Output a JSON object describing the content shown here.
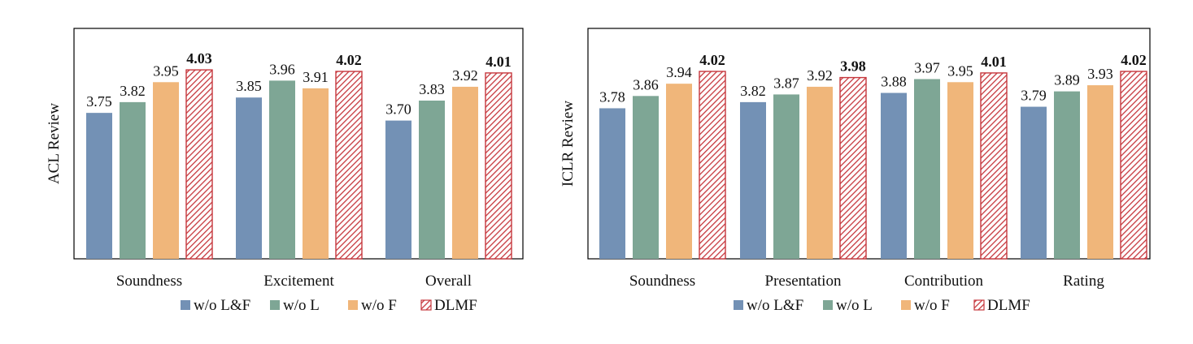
{
  "chart_data": [
    {
      "type": "bar",
      "ylabel": "ACL Review",
      "categories": [
        "Soundness",
        "Excitement",
        "Overall"
      ],
      "ylim": [
        2.8,
        4.3
      ],
      "grid": false,
      "legend_position": "bottom",
      "series": [
        {
          "name": "w/o L&F",
          "values": [
            3.75,
            3.85,
            3.7
          ],
          "color": "#7391b5",
          "labels": [
            "3.75",
            "3.85",
            "3.70"
          ]
        },
        {
          "name": "w/o L",
          "values": [
            3.82,
            3.96,
            3.83
          ],
          "color": "#7ea695",
          "labels": [
            "3.82",
            "3.96",
            "3.83"
          ]
        },
        {
          "name": "w/o F",
          "values": [
            3.95,
            3.91,
            3.92
          ],
          "color": "#f0b67a",
          "labels": [
            "3.95",
            "3.91",
            "3.92"
          ]
        },
        {
          "name": "DLMF",
          "values": [
            4.03,
            4.02,
            4.01
          ],
          "color": "#c6373d",
          "pattern": "hatched",
          "bold": true,
          "labels": [
            "4.03",
            "4.02",
            "4.01"
          ]
        }
      ]
    },
    {
      "type": "bar",
      "ylabel": "ICLR Review",
      "categories": [
        "Soundness",
        "Presentation",
        "Contribution",
        "Rating"
      ],
      "ylim": [
        2.8,
        4.3
      ],
      "grid": false,
      "legend_position": "bottom",
      "series": [
        {
          "name": "w/o L&F",
          "values": [
            3.78,
            3.82,
            3.88,
            3.79
          ],
          "color": "#7391b5",
          "labels": [
            "3.78",
            "3.82",
            "3.88",
            "3.79"
          ]
        },
        {
          "name": "w/o L",
          "values": [
            3.86,
            3.87,
            3.97,
            3.89
          ],
          "color": "#7ea695",
          "labels": [
            "3.86",
            "3.87",
            "3.97",
            "3.89"
          ]
        },
        {
          "name": "w/o F",
          "values": [
            3.94,
            3.92,
            3.95,
            3.93
          ],
          "color": "#f0b67a",
          "labels": [
            "3.94",
            "3.92",
            "3.95",
            "3.93"
          ]
        },
        {
          "name": "DLMF",
          "values": [
            4.02,
            3.98,
            4.01,
            4.02
          ],
          "color": "#c6373d",
          "pattern": "hatched",
          "bold": true,
          "labels": [
            "4.02",
            "3.98",
            "4.01",
            "4.02"
          ]
        }
      ]
    }
  ]
}
